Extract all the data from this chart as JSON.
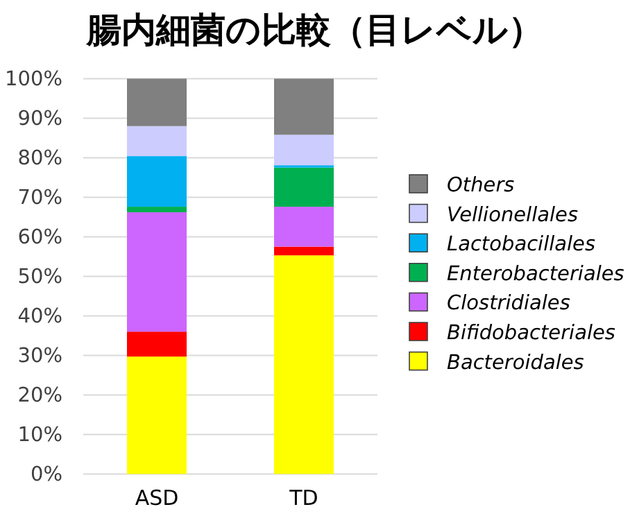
{
  "chart_data": {
    "type": "bar",
    "stacked": true,
    "title": "腸内細菌の比較（目レベル）",
    "categories": [
      "ASD",
      "TD"
    ],
    "series": [
      {
        "name": "Bacteroidales",
        "color": "#ffff00",
        "values": [
          29.7,
          55.3
        ]
      },
      {
        "name": "Bifidobacteriales",
        "color": "#ff0000",
        "values": [
          6.3,
          2.2
        ]
      },
      {
        "name": "Clostridiales",
        "color": "#cc66ff",
        "values": [
          30.2,
          10.1
        ]
      },
      {
        "name": "Enterobacteriales",
        "color": "#00b050",
        "values": [
          1.4,
          9.9
        ]
      },
      {
        "name": "Lactobacillales",
        "color": "#00b0f0",
        "values": [
          12.8,
          0.6
        ]
      },
      {
        "name": "Vellionellales",
        "color": "#ccccff",
        "values": [
          7.6,
          7.7
        ]
      },
      {
        "name": "Others",
        "color": "#808080",
        "values": [
          12.0,
          14.2
        ]
      }
    ],
    "ylim": [
      0,
      100
    ],
    "yticks": [
      {
        "value": 0,
        "label": "0%"
      },
      {
        "value": 10,
        "label": "10%"
      },
      {
        "value": 20,
        "label": "20%"
      },
      {
        "value": 30,
        "label": "30%"
      },
      {
        "value": 40,
        "label": "40%"
      },
      {
        "value": 50,
        "label": "50%"
      },
      {
        "value": 60,
        "label": "60%"
      },
      {
        "value": 70,
        "label": "70%"
      },
      {
        "value": 80,
        "label": "80%"
      },
      {
        "value": 90,
        "label": "90%"
      },
      {
        "value": 100,
        "label": "100%"
      }
    ],
    "grid": "y",
    "legend": "right"
  }
}
